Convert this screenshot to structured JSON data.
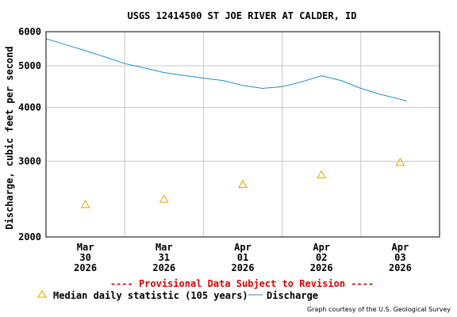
{
  "chart_data": {
    "type": "line",
    "title": "USGS 12414500 ST JOE RIVER AT CALDER, ID",
    "ylabel": "Discharge, cubic feet per second",
    "xlabel": "",
    "y_scale": "log",
    "ylim": [
      2000,
      6000
    ],
    "y_ticks": [
      2000,
      3000,
      4000,
      5000,
      6000
    ],
    "y_tick_labels": [
      "2000",
      "3000",
      "4000",
      "5000",
      "6000"
    ],
    "xlim": [
      "2026-03-29 12:00",
      "2026-04-03 12:00"
    ],
    "x_ticks": [
      {
        "date": "2026-03-30",
        "label": [
          "Mar",
          "30",
          "2026"
        ]
      },
      {
        "date": "2026-03-31",
        "label": [
          "Mar",
          "31",
          "2026"
        ]
      },
      {
        "date": "2026-04-01",
        "label": [
          "Apr",
          "01",
          "2026"
        ]
      },
      {
        "date": "2026-04-02",
        "label": [
          "Apr",
          "02",
          "2026"
        ]
      },
      {
        "date": "2026-04-03",
        "label": [
          "Apr",
          "03",
          "2026"
        ]
      }
    ],
    "grid": true,
    "series": [
      {
        "name": "Median daily statistic (105 years)",
        "marker": "triangle",
        "color": "#e8a000",
        "points": [
          {
            "x": "2026-03-30",
            "y": 2380
          },
          {
            "x": "2026-03-31",
            "y": 2450
          },
          {
            "x": "2026-04-01",
            "y": 2650
          },
          {
            "x": "2026-04-02",
            "y": 2790
          },
          {
            "x": "2026-04-03",
            "y": 2980
          }
        ]
      },
      {
        "name": "Discharge",
        "marker": "line",
        "color": "#1f8fc8",
        "points": [
          {
            "x": "2026-03-29 12:00",
            "y": 5780
          },
          {
            "x": "2026-03-29 18:00",
            "y": 5600
          },
          {
            "x": "2026-03-30 00:00",
            "y": 5420
          },
          {
            "x": "2026-03-30 06:00",
            "y": 5240
          },
          {
            "x": "2026-03-30 12:00",
            "y": 5060
          },
          {
            "x": "2026-03-30 18:00",
            "y": 4940
          },
          {
            "x": "2026-03-31 00:00",
            "y": 4820
          },
          {
            "x": "2026-03-31 06:00",
            "y": 4750
          },
          {
            "x": "2026-03-31 12:00",
            "y": 4680
          },
          {
            "x": "2026-03-31 18:00",
            "y": 4620
          },
          {
            "x": "2026-04-01 00:00",
            "y": 4500
          },
          {
            "x": "2026-04-01 06:00",
            "y": 4430
          },
          {
            "x": "2026-04-01 12:00",
            "y": 4470
          },
          {
            "x": "2026-04-01 18:00",
            "y": 4590
          },
          {
            "x": "2026-04-02 00:00",
            "y": 4740
          },
          {
            "x": "2026-04-02 06:00",
            "y": 4620
          },
          {
            "x": "2026-04-02 12:00",
            "y": 4430
          },
          {
            "x": "2026-04-02 18:00",
            "y": 4290
          },
          {
            "x": "2026-04-03 00:00",
            "y": 4180
          },
          {
            "x": "2026-04-03 02:00",
            "y": 4140
          }
        ]
      }
    ],
    "legend_position": "bottom",
    "annotations": [
      "---- Provisional Data Subject to Revision ----"
    ],
    "annotation_color": "#e00000",
    "credit": "Graph courtesy of the U.S. Geological Survey"
  }
}
